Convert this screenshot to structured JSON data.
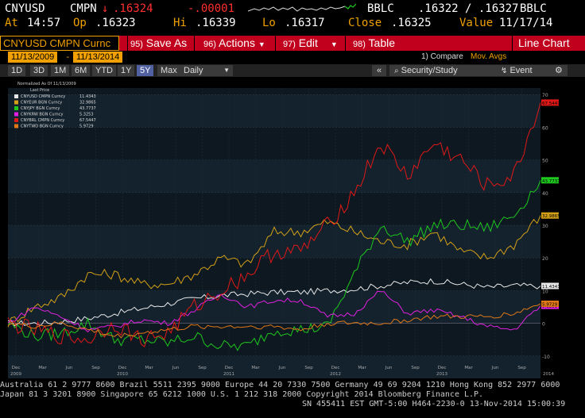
{
  "quote": {
    "ticker": "CNYUSD",
    "source": "CMPN",
    "arrow": "↓",
    "last": ".16324",
    "change": "-.00001",
    "bid_source": "BBLC",
    "bid_ask": ".16322 / .16327",
    "ask_source": "BBLC",
    "at_label": "At",
    "time": "14:57",
    "op_label": "Op",
    "open": ".16323",
    "hi_label": "Hi",
    "high": ".16339",
    "lo_label": "Lo",
    "low": ".16317",
    "close_label": "Close",
    "close": ".16325",
    "value_label": "Value",
    "value_date": "11/17/14"
  },
  "toolbar": {
    "security": "CNYUSD CMPN Curnc",
    "save_num": "95)",
    "save_label": "Save As",
    "actions_num": "96)",
    "actions_label": "Actions",
    "edit_num": "97)",
    "edit_label": "Edit",
    "table_num": "98)",
    "table_label": "Table",
    "chart_type": "Line Chart"
  },
  "dates": {
    "start": "11/13/2009",
    "end": "11/13/2014",
    "compare": "1) Compare",
    "mov_avgs": "Mov. Avgs"
  },
  "periods": [
    "1D",
    "3D",
    "1M",
    "6M",
    "YTD",
    "1Y",
    "5Y",
    "Max"
  ],
  "active_period": "5Y",
  "frequency": "Daily",
  "right_buttons": {
    "security_study": "Security/Study",
    "event": "Event"
  },
  "colors": {
    "white": "#e8e8e8",
    "yellow": "#d4a017",
    "green": "#1ec81e",
    "magenta": "#e020e0",
    "red": "#e01818",
    "orange": "#e07818"
  },
  "chart_data": {
    "type": "line",
    "legend_title": "Normalized As Of 11/13/2009",
    "legend_subtitle": "Last Price",
    "x": [
      "2009-11-13",
      "2010-02-13",
      "2010-05-13",
      "2010-08-13",
      "2010-11-13",
      "2011-02-13",
      "2011-05-13",
      "2011-08-13",
      "2011-11-13",
      "2012-02-13",
      "2012-05-13",
      "2012-08-13",
      "2012-11-13",
      "2013-02-13",
      "2013-05-13",
      "2013-08-13",
      "2013-11-13",
      "2014-02-13",
      "2014-05-13",
      "2014-08-13",
      "2014-11-13"
    ],
    "series": [
      {
        "name": "CNYUSD CMPN Curncy",
        "last_label": "11.4343",
        "color": "#e8e8e8",
        "values": [
          0,
          0,
          0.5,
          1.5,
          3,
          4.5,
          6,
          7.5,
          8.5,
          9,
          9.5,
          9.5,
          10,
          10.5,
          11.5,
          12.5,
          13,
          12,
          11,
          11.5,
          11.43
        ]
      },
      {
        "name": "CNYEUR BGN Curncy",
        "last_label": "32.9865",
        "color": "#d4a017",
        "values": [
          0,
          5,
          8,
          15,
          15,
          12,
          12,
          15,
          20,
          18,
          28,
          28,
          31,
          28,
          25,
          24,
          28,
          22,
          20,
          24,
          32.99
        ]
      },
      {
        "name": "CNYJPY BGN Curncy",
        "last_label": "43.7737",
        "color": "#1ec81e",
        "values": [
          0,
          -4,
          -3,
          0,
          -5,
          -5,
          -6,
          -4,
          -7,
          -7,
          -2,
          -2,
          -1,
          15,
          30,
          25,
          30,
          30,
          29,
          33,
          43.77
        ]
      },
      {
        "name": "CNYKRW BGN Curncy",
        "last_label": "5.3253",
        "color": "#e020e0",
        "values": [
          0,
          5,
          2,
          -2,
          -1,
          1,
          0,
          4,
          9,
          5,
          7,
          7,
          2,
          3,
          10,
          3,
          4,
          2,
          -1,
          -2,
          5.33
        ]
      },
      {
        "name": "CNYBRL CMPN Curncy",
        "last_label": "67.5447",
        "color": "#e01818",
        "values": [
          0,
          -2,
          -4,
          -5,
          0,
          -5,
          -3,
          5,
          10,
          15,
          22,
          22,
          30,
          40,
          55,
          45,
          55,
          50,
          42,
          45,
          67.54
        ]
      },
      {
        "name": "CNYTWD BGN Curncy",
        "last_label": "5.9729",
        "color": "#e07818",
        "values": [
          0,
          -1,
          0,
          -2,
          -4,
          -3,
          -2,
          -1,
          -1,
          -1,
          -1,
          -2,
          0,
          0,
          0,
          1,
          2,
          2,
          2,
          3,
          5.97
        ]
      }
    ],
    "ylim": [
      -12,
      72
    ],
    "y_ticks": [
      70,
      60,
      50,
      40,
      30,
      20,
      10,
      0,
      -10
    ],
    "x_month_labels": [
      "Dec",
      "Mar",
      "Jun",
      "Sep",
      "Dec",
      "Mar",
      "Jun",
      "Sep",
      "Dec",
      "Mar",
      "Jun",
      "Sep",
      "Dec",
      "Mar",
      "Jun",
      "Sep",
      "Dec",
      "Mar",
      "Jun",
      "Sep"
    ],
    "x_year_labels": [
      "2009",
      "2010",
      "2011",
      "2012",
      "2013",
      "2014"
    ],
    "grid": true,
    "legend_position": "top-left"
  },
  "footer": {
    "line1": "Australia 61 2 9777 8600 Brazil 5511 2395 9000 Europe 44 20 7330 7500 Germany 49 69 9204 1210 Hong Kong 852 2977 6000",
    "line2": "Japan 81 3 3201 8900         Singapore 65 6212 1000         U.S. 1 212 318 2000         Copyright 2014 Bloomberg Finance L.P.",
    "line3": "SN 455411 EST  GMT-5:00 H464-2230-0 13-Nov-2014 15:00:39"
  }
}
